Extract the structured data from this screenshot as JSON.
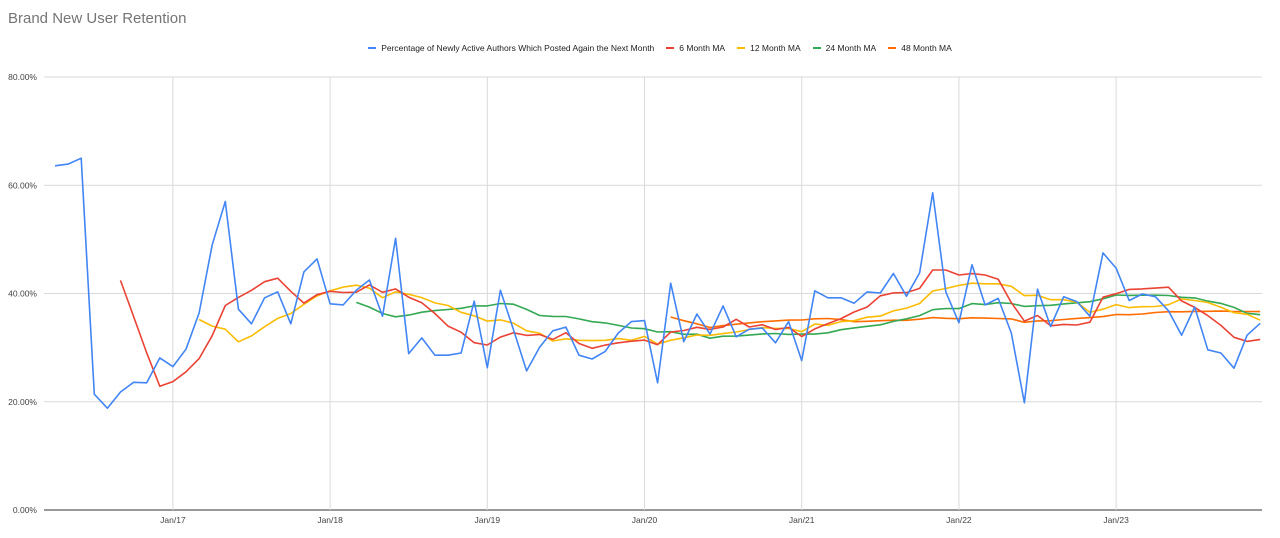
{
  "chart_data": {
    "type": "line",
    "title": "Brand New User Retention",
    "x_start": "2016-04",
    "x_interval": "month",
    "x_ticks": [
      "Jan/17",
      "Jan/18",
      "Jan/19",
      "Jan/20",
      "Jan/21",
      "Jan/22",
      "Jan/23"
    ],
    "y_ticks": [
      "0.00%",
      "20.00%",
      "40.00%",
      "60.00%",
      "80.00%"
    ],
    "ylim": [
      0,
      80
    ],
    "y_unit": "%",
    "grid": true,
    "legend_position": "top",
    "series": [
      {
        "name": "Percentage of Newly Active Authors Which Posted Again the Next Month",
        "color": "#4285F4",
        "values": [
          63.6,
          63.9,
          65.0,
          21.4,
          18.8,
          21.8,
          23.6,
          23.5,
          28.1,
          26.5,
          29.7,
          36.4,
          49.0,
          57.0,
          37.1,
          34.4,
          39.2,
          40.3,
          34.4,
          44.0,
          46.4,
          38.1,
          37.9,
          40.6,
          42.5,
          35.8,
          50.2,
          28.9,
          31.8,
          28.6,
          28.6,
          29.0,
          38.6,
          26.3,
          40.6,
          33.3,
          25.7,
          30.1,
          33.1,
          33.8,
          28.6,
          27.9,
          29.3,
          32.7,
          34.8,
          35.0,
          23.5,
          41.9,
          31.1,
          36.2,
          32.5,
          37.7,
          32.0,
          33.4,
          33.6,
          30.9,
          34.8,
          27.6,
          40.5,
          39.2,
          39.2,
          38.2,
          40.3,
          40.1,
          43.7,
          39.5,
          43.8,
          58.6,
          40.3,
          34.6,
          45.3,
          37.9,
          39.1,
          32.7,
          19.8,
          40.8,
          33.9,
          39.4,
          38.5,
          35.8,
          47.5,
          44.7,
          38.7,
          39.9,
          39.4,
          36.8,
          32.3,
          37.5,
          29.6,
          29.0,
          26.2,
          32.3,
          34.5
        ]
      },
      {
        "name": "6 Month MA",
        "color": "#EA4335",
        "moving_average_of": 0,
        "window": 6
      },
      {
        "name": "12 Month MA",
        "color": "#FBBC04",
        "moving_average_of": 0,
        "window": 12
      },
      {
        "name": "24 Month MA",
        "color": "#34A853",
        "moving_average_of": 0,
        "window": 24
      },
      {
        "name": "48 Month MA",
        "color": "#FF6D01",
        "moving_average_of": 0,
        "window": 48
      }
    ]
  }
}
